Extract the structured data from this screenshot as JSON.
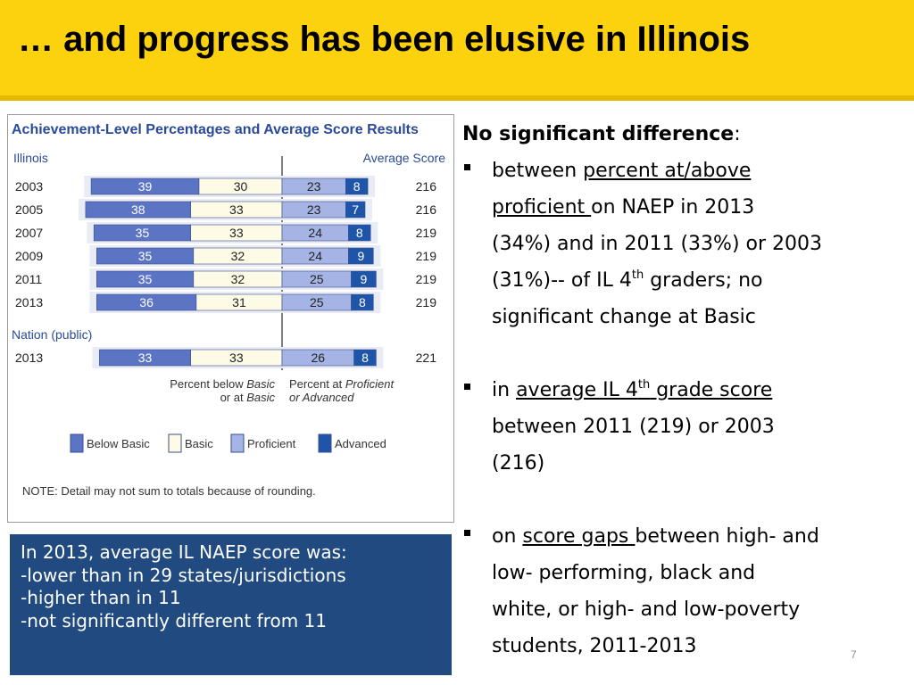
{
  "slide": {
    "title": "… and progress has been elusive in Illinois",
    "number": "7"
  },
  "chart_data": {
    "type": "bar",
    "stacked": true,
    "title": "Achievement-Level Percentages and Average Score Results",
    "groups": {
      "illinois": "Illinois",
      "nation": "Nation (public)"
    },
    "score_header": "Average Score",
    "categories": [
      "2003",
      "2005",
      "2007",
      "2009",
      "2011",
      "2013",
      "2013"
    ],
    "category_groups": [
      "Illinois",
      "Illinois",
      "Illinois",
      "Illinois",
      "Illinois",
      "Illinois",
      "Nation (public)"
    ],
    "series": [
      {
        "name": "Below Basic",
        "values": [
          39,
          38,
          35,
          35,
          35,
          36,
          33
        ],
        "color": "#5b74c4"
      },
      {
        "name": "Basic",
        "values": [
          30,
          33,
          33,
          32,
          32,
          31,
          33
        ],
        "color": "#fdfbe6"
      },
      {
        "name": "Proficient",
        "values": [
          23,
          23,
          24,
          24,
          25,
          25,
          26
        ],
        "color": "#a5b4e4"
      },
      {
        "name": "Advanced",
        "values": [
          8,
          7,
          8,
          9,
          9,
          8,
          8
        ],
        "color": "#1f55a8"
      }
    ],
    "average_scores": [
      "216",
      "216",
      "219",
      "219",
      "219",
      "219",
      "221"
    ],
    "axis_labels": {
      "left_line1": "Percent below ",
      "left_line1_italic": "Basic",
      "left_line2": "or at ",
      "left_line2_italic": "Basic",
      "right_line1": "Percent at ",
      "right_line1_italic": "Proficient",
      "right_line2_italic": "or Advanced"
    },
    "legend_position": "bottom",
    "note": "NOTE: Detail may not sum to totals because of rounding."
  },
  "callout": {
    "lines": [
      "In 2013, average IL NAEP score was:",
      "-lower than in 29 states/jurisdictions",
      "-higher than in 11",
      "-not significantly different from 11"
    ]
  },
  "findings": {
    "heading": "No significant difference",
    "heading_colon": ":",
    "b1": {
      "p1": "between ",
      "u1a": "percent at/above",
      "u1b": "proficient ",
      "p2": "on NAEP in 2013",
      "p3": "(34%) and in 2011 (33%)  or 2003",
      "p4": "(31%)-- of IL 4",
      "sup": "th",
      "p5": " graders;  no",
      "p6": "significant change  at Basic"
    },
    "b2": {
      "p1": "in ",
      "u1": "average IL 4",
      "sup": "th",
      "u2": " grade score",
      "p2": "between 2011 (219) or 2003",
      "p3": "(216)"
    },
    "b3": {
      "p1": "on ",
      "u1": "score gaps ",
      "p2": "between high- and",
      "p3": "low- performing, black and",
      "p4": "white, or high- and low-poverty",
      "p5": "students, 2011-2013"
    }
  }
}
